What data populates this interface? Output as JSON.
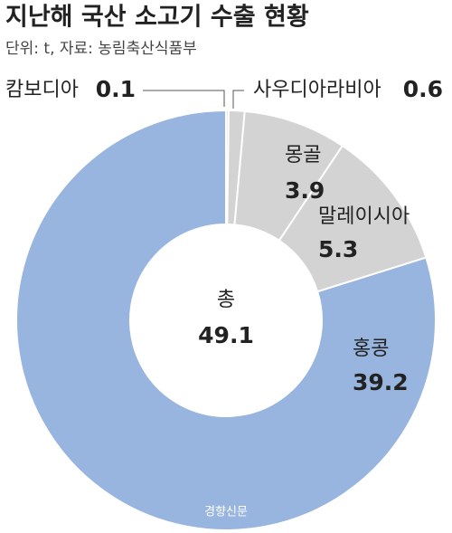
{
  "chart_data": {
    "type": "donut",
    "title": "지난해 국산 소고기 수출 현황",
    "subtitle": "단위: t, 자료: 농림축산식품부",
    "categories": [
      "캄보디아",
      "사우디아라비아",
      "몽골",
      "말레이시아",
      "홍콩"
    ],
    "values": [
      0.1,
      0.6,
      3.9,
      5.3,
      39.2
    ],
    "colors": [
      "#e6e6e6",
      "#d3d3d3",
      "#d3d3d3",
      "#d3d3d3",
      "#97b5df"
    ],
    "total_label": "총",
    "total": 49.1,
    "source": "경향신문"
  }
}
